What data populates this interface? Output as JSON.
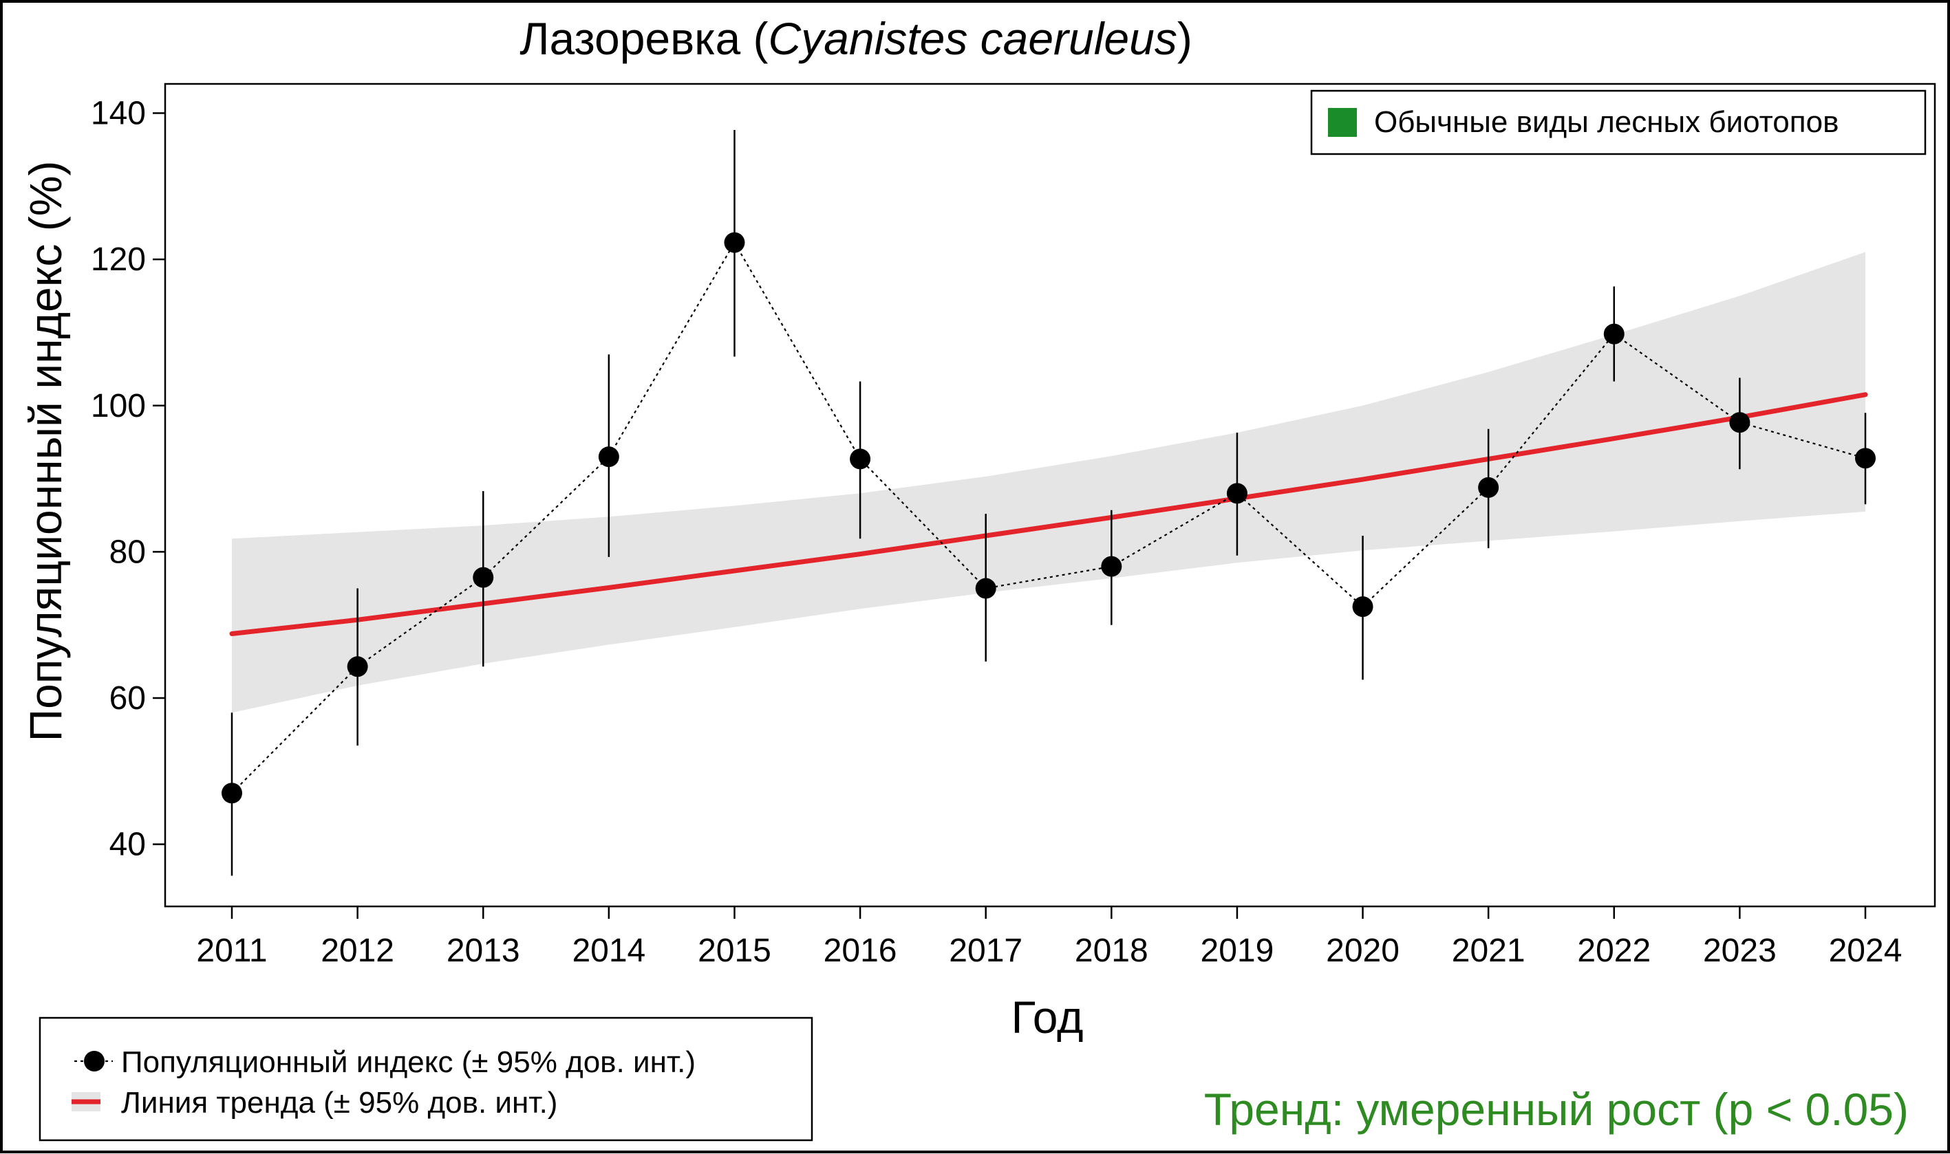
{
  "chart_data": {
    "type": "line",
    "title": {
      "common": "Лазоревка",
      "open": " (",
      "latin": "Cyanistes caeruleus",
      "close": ")"
    },
    "xlabel": "Год",
    "ylabel": "Популяционный индекс (%)",
    "ylim": [
      31.5,
      144
    ],
    "yticks": [
      40,
      60,
      80,
      100,
      120,
      140
    ],
    "x": [
      2011,
      2012,
      2013,
      2014,
      2015,
      2016,
      2017,
      2018,
      2019,
      2020,
      2021,
      2022,
      2023,
      2024
    ],
    "series": [
      {
        "name": "Популяционный индекс (± 95% дов. инт.)",
        "values": [
          47,
          64.3,
          76.5,
          93,
          122.3,
          92.7,
          75,
          78,
          88,
          72.5,
          88.8,
          109.8,
          97.7,
          92.8
        ],
        "lower": [
          35.7,
          53.5,
          64.3,
          79.3,
          106.7,
          81.8,
          65,
          70,
          79.5,
          62.5,
          80.5,
          103.3,
          91.3,
          86.5
        ],
        "upper": [
          58,
          75,
          88.3,
          107,
          137.7,
          103.3,
          85.2,
          85.7,
          96.3,
          82.2,
          96.8,
          116.3,
          103.8,
          99
        ]
      },
      {
        "name": "Линия тренда (± 95% дов. инт.)",
        "values": [
          68.8,
          70.7,
          72.9,
          75.1,
          77.4,
          79.7,
          82.2,
          84.7,
          87.3,
          89.9,
          92.7,
          95.5,
          98.4,
          101.5
        ],
        "lower": [
          58,
          61.7,
          64.7,
          67.3,
          69.7,
          72.2,
          74.4,
          76.4,
          78.5,
          80.2,
          81.5,
          82.8,
          84.2,
          85.5
        ],
        "upper": [
          81.8,
          82.7,
          83.6,
          84.8,
          86.3,
          88,
          90.3,
          93.1,
          96.3,
          100,
          104.6,
          109.7,
          115,
          121
        ]
      }
    ],
    "legend_group": "Обычные виды лесных биотопов",
    "trend_text": "Тренд: умеренный рост (p < 0.05)",
    "colors": {
      "trend": "#e3252b",
      "band": "#e5e5e5",
      "group": "#1a8c2a",
      "trend_text": "#2e8b22",
      "points": "#000000"
    }
  }
}
